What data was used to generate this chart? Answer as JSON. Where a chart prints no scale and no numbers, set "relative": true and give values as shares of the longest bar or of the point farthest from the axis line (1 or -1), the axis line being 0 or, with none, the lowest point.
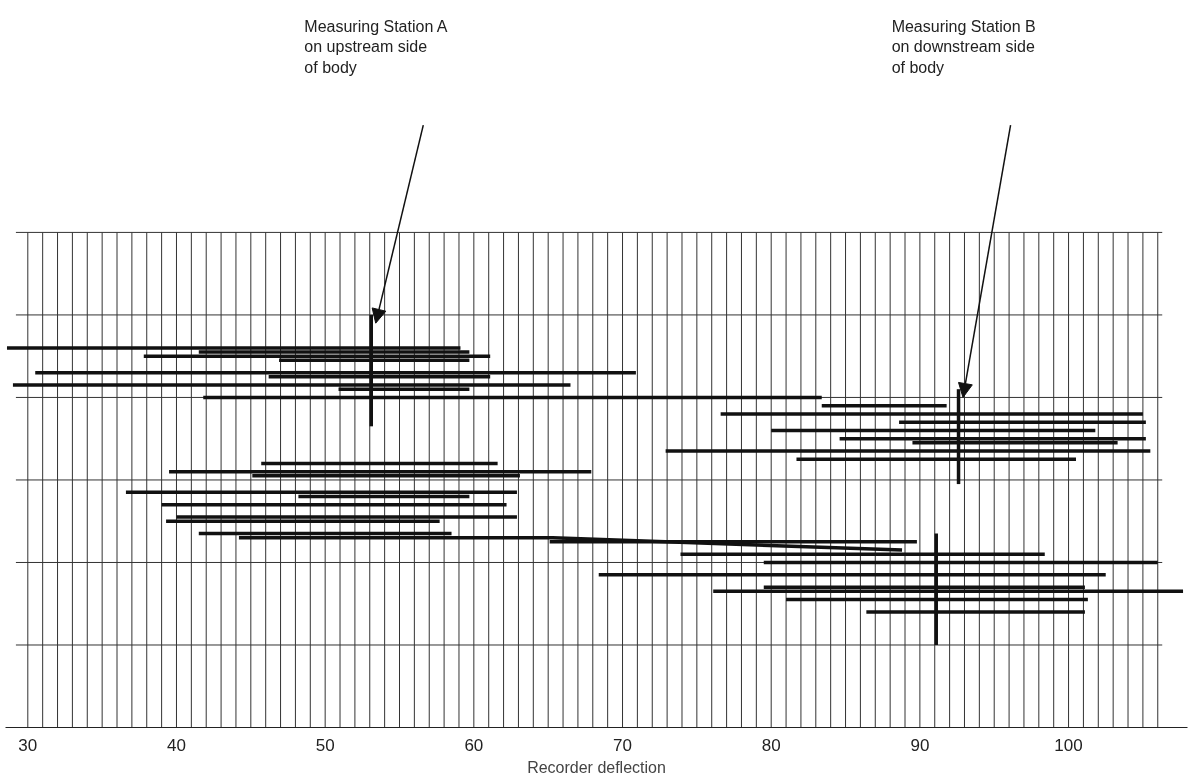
{
  "chart_data": {
    "type": "line",
    "relative": true,
    "xlabel": "Recorder deflection",
    "xlim": [
      28.5,
      108
    ],
    "xticks": [
      30,
      {
        "value": 31,
        "label": null
      },
      {
        "value": 32,
        "label": null
      },
      {
        "value": 33,
        "label": null
      },
      {
        "value": 34,
        "label": null
      },
      {
        "value": 35,
        "label": null
      },
      {
        "value": 36,
        "label": null
      },
      {
        "value": 37,
        "label": null
      },
      {
        "value": 38,
        "label": null
      },
      {
        "value": 39,
        "label": null
      },
      40,
      {
        "value": 41,
        "label": null
      },
      {
        "value": 42,
        "label": null
      },
      {
        "value": 43,
        "label": null
      },
      {
        "value": 44,
        "label": null
      },
      {
        "value": 45,
        "label": null
      },
      {
        "value": 46,
        "label": null
      },
      {
        "value": 47,
        "label": null
      },
      {
        "value": 48,
        "label": null
      },
      {
        "value": 49,
        "label": null
      },
      50,
      {
        "value": 51,
        "label": null
      },
      {
        "value": 52,
        "label": null
      },
      {
        "value": 53,
        "label": null
      },
      {
        "value": 54,
        "label": null
      },
      {
        "value": 55,
        "label": null
      },
      {
        "value": 56,
        "label": null
      },
      {
        "value": 57,
        "label": null
      },
      {
        "value": 58,
        "label": null
      },
      {
        "value": 59,
        "label": null
      },
      60,
      {
        "value": 61,
        "label": null
      },
      {
        "value": 62,
        "label": null
      },
      {
        "value": 63,
        "label": null
      },
      {
        "value": 64,
        "label": null
      },
      {
        "value": 65,
        "label": null
      },
      {
        "value": 66,
        "label": null
      },
      {
        "value": 67,
        "label": null
      },
      {
        "value": 68,
        "label": null
      },
      {
        "value": 69,
        "label": null
      },
      70,
      {
        "value": 71,
        "label": null
      },
      {
        "value": 72,
        "label": null
      },
      {
        "value": 73,
        "label": null
      },
      {
        "value": 74,
        "label": null
      },
      {
        "value": 75,
        "label": null
      },
      {
        "value": 76,
        "label": null
      },
      {
        "value": 77,
        "label": null
      },
      {
        "value": 78,
        "label": null
      },
      {
        "value": 79,
        "label": null
      },
      80,
      {
        "value": 81,
        "label": null
      },
      {
        "value": 82,
        "label": null
      },
      {
        "value": 83,
        "label": null
      },
      {
        "value": 84,
        "label": null
      },
      {
        "value": 85,
        "label": null
      },
      {
        "value": 86,
        "label": null
      },
      {
        "value": 87,
        "label": null
      },
      {
        "value": 88,
        "label": null
      },
      {
        "value": 89,
        "label": null
      },
      90,
      {
        "value": 91,
        "label": null
      },
      {
        "value": 92,
        "label": null
      },
      {
        "value": 93,
        "label": null
      },
      {
        "value": 94,
        "label": null
      },
      {
        "value": 95,
        "label": null
      },
      {
        "value": 96,
        "label": null
      },
      {
        "value": 97,
        "label": null
      },
      {
        "value": 98,
        "label": null
      },
      {
        "value": 99,
        "label": null
      },
      100,
      {
        "value": 101,
        "label": null
      },
      {
        "value": 102,
        "label": null
      },
      {
        "value": 103,
        "label": null
      },
      {
        "value": 104,
        "label": null
      },
      {
        "value": 105,
        "label": null
      },
      {
        "value": 106,
        "label": null
      }
    ],
    "grid": true,
    "marker": "none",
    "line_style": "solid",
    "series": [
      {
        "color": "#111111",
        "x": [
          28.6,
          59.1
        ],
        "values": [
          0.92,
          0.92
        ]
      },
      {
        "color": "#111111",
        "x": [
          41.5,
          59.7
        ],
        "values": [
          0.91,
          0.91
        ]
      },
      {
        "color": "#111111",
        "x": [
          37.8,
          61.1
        ],
        "values": [
          0.9,
          0.9
        ]
      },
      {
        "color": "#111111",
        "x": [
          46.9,
          59.7
        ],
        "values": [
          0.89,
          0.89
        ]
      },
      {
        "color": "#111111",
        "x": [
          30.5,
          70.9
        ],
        "values": [
          0.86,
          0.86
        ]
      },
      {
        "color": "#111111",
        "x": [
          46.2,
          61.1
        ],
        "values": [
          0.85,
          0.85
        ]
      },
      {
        "color": "#111111",
        "x": [
          29.0,
          66.5
        ],
        "values": [
          0.83,
          0.83
        ]
      },
      {
        "color": "#111111",
        "x": [
          50.9,
          59.7
        ],
        "values": [
          0.82,
          0.82
        ]
      },
      {
        "color": "#111111",
        "x": [
          41.8,
          83.4
        ],
        "values": [
          0.8,
          0.8
        ]
      },
      {
        "color": "#111111",
        "x": [
          83.4,
          91.8
        ],
        "values": [
          0.78,
          0.78
        ]
      },
      {
        "color": "#111111",
        "x": [
          76.6,
          105.0
        ],
        "values": [
          0.76,
          0.76
        ]
      },
      {
        "color": "#111111",
        "x": [
          88.6,
          105.2
        ],
        "values": [
          0.74,
          0.74
        ]
      },
      {
        "color": "#111111",
        "x": [
          80.0,
          101.8
        ],
        "values": [
          0.72,
          0.72
        ]
      },
      {
        "color": "#111111",
        "x": [
          84.6,
          105.2
        ],
        "values": [
          0.7,
          0.7
        ]
      },
      {
        "color": "#111111",
        "x": [
          89.5,
          103.3
        ],
        "values": [
          0.69,
          0.69
        ]
      },
      {
        "color": "#111111",
        "x": [
          72.9,
          105.5
        ],
        "values": [
          0.67,
          0.67
        ]
      },
      {
        "color": "#111111",
        "x": [
          81.7,
          100.5
        ],
        "values": [
          0.65,
          0.65
        ]
      },
      {
        "color": "#111111",
        "x": [
          45.7,
          61.6
        ],
        "values": [
          0.64,
          0.64
        ]
      },
      {
        "color": "#111111",
        "x": [
          39.5,
          67.9
        ],
        "values": [
          0.62,
          0.62
        ]
      },
      {
        "color": "#111111",
        "x": [
          45.1,
          63.1
        ],
        "values": [
          0.61,
          0.61
        ]
      },
      {
        "color": "#111111",
        "x": [
          36.6,
          62.9
        ],
        "values": [
          0.57,
          0.57
        ]
      },
      {
        "color": "#111111",
        "x": [
          48.2,
          59.7
        ],
        "values": [
          0.56,
          0.56
        ]
      },
      {
        "color": "#111111",
        "x": [
          39.0,
          62.2
        ],
        "values": [
          0.54,
          0.54
        ]
      },
      {
        "color": "#111111",
        "x": [
          40.0,
          62.9
        ],
        "values": [
          0.51,
          0.51
        ]
      },
      {
        "color": "#111111",
        "x": [
          39.3,
          57.7
        ],
        "values": [
          0.5,
          0.5
        ]
      },
      {
        "color": "#111111",
        "x": [
          41.5,
          58.5
        ],
        "values": [
          0.47,
          0.47
        ]
      },
      {
        "color": "#111111",
        "x": [
          44.2,
          65.3,
          88.8
        ],
        "values": [
          0.46,
          0.46,
          0.43
        ]
      },
      {
        "color": "#111111",
        "x": [
          65.1,
          89.8
        ],
        "values": [
          0.45,
          0.45
        ]
      },
      {
        "color": "#111111",
        "x": [
          73.9,
          98.4
        ],
        "values": [
          0.42,
          0.42
        ]
      },
      {
        "color": "#111111",
        "x": [
          79.5,
          106.0
        ],
        "values": [
          0.4,
          0.4
        ]
      },
      {
        "color": "#111111",
        "x": [
          68.4,
          102.5
        ],
        "values": [
          0.37,
          0.37
        ]
      },
      {
        "color": "#111111",
        "x": [
          79.5,
          101.1
        ],
        "values": [
          0.34,
          0.34
        ]
      },
      {
        "color": "#111111",
        "x": [
          76.1,
          107.7
        ],
        "values": [
          0.33,
          0.33
        ]
      },
      {
        "color": "#111111",
        "x": [
          81.0,
          101.3
        ],
        "values": [
          0.31,
          0.31
        ]
      },
      {
        "color": "#111111",
        "x": [
          86.4,
          101.1
        ],
        "values": [
          0.28,
          0.28
        ]
      },
      {
        "color": "#111111",
        "x": [
          53.1,
          53.1
        ],
        "values": [
          1.0,
          0.73
        ]
      },
      {
        "color": "#111111",
        "x": [
          92.6,
          92.6
        ],
        "values": [
          0.82,
          0.59
        ]
      },
      {
        "color": "#111111",
        "x": [
          91.1,
          91.1
        ],
        "values": [
          0.47,
          0.2
        ]
      }
    ],
    "annotations": [
      "Measuring Station A\non upstream side\nof body",
      "Measuring Station B\non downstream side\nof body"
    ]
  }
}
